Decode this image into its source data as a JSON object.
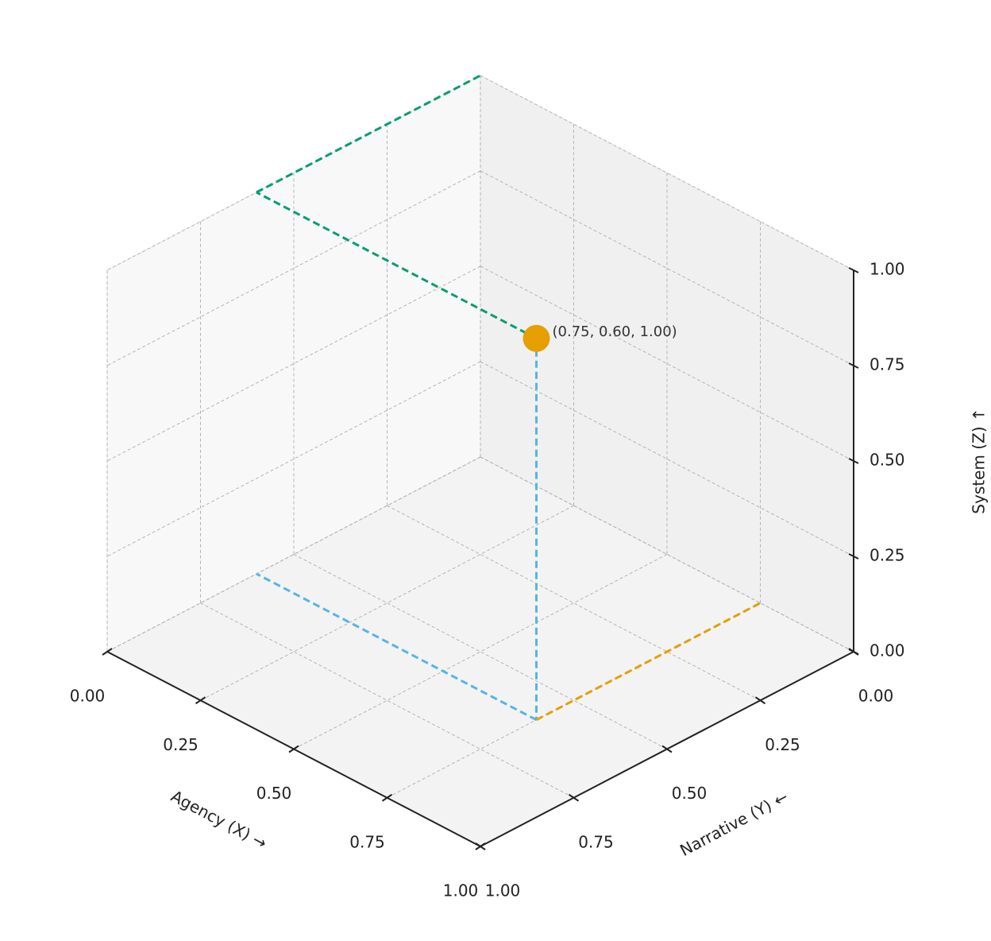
{
  "chart_data": {
    "type": "scatter3d",
    "xlabel": "Agency (X) →",
    "ylabel": "Narrative (Y) ←",
    "zlabel": "System (Z) ↑",
    "xlim": [
      0,
      1
    ],
    "ylim": [
      0,
      1
    ],
    "zlim": [
      0,
      1
    ],
    "xticks": [
      {
        "value": 0,
        "label": "0.00"
      },
      {
        "value": 0.25,
        "label": "0.25"
      },
      {
        "value": 0.5,
        "label": "0.50"
      },
      {
        "value": 0.75,
        "label": "0.75"
      },
      {
        "value": 1,
        "label": "1.00"
      }
    ],
    "yticks": [
      {
        "value": 0,
        "label": "0.00"
      },
      {
        "value": 0.25,
        "label": "0.25"
      },
      {
        "value": 0.5,
        "label": "0.50"
      },
      {
        "value": 0.75,
        "label": "0.75"
      },
      {
        "value": 1,
        "label": "1.00"
      }
    ],
    "zticks": [
      {
        "value": 0,
        "label": "0.00"
      },
      {
        "value": 0.25,
        "label": "0.25"
      },
      {
        "value": 0.5,
        "label": "0.50"
      },
      {
        "value": 0.75,
        "label": "0.75"
      },
      {
        "value": 1,
        "label": "1.00"
      }
    ],
    "grid": true,
    "points": {
      "x": [
        0.75
      ],
      "y": [
        0.6
      ],
      "z": [
        1.0
      ],
      "color": "#e69f00"
    },
    "annotation": "(0.75, 0.60, 1.00)",
    "lines": [
      {
        "x": [
          0.75,
          0.75
        ],
        "y": [
          0.6,
          0.6
        ],
        "z": [
          1.0,
          0
        ],
        "color": "#56b4e9"
      },
      {
        "x": [
          0.75,
          0
        ],
        "y": [
          0.6,
          0.6
        ],
        "z": [
          0,
          0
        ],
        "color": "#56b4e9"
      },
      {
        "x": [
          0.75,
          0.75
        ],
        "y": [
          0.6,
          0
        ],
        "z": [
          0,
          0
        ],
        "color": "#e69f00"
      },
      {
        "x": [
          0.75,
          0
        ],
        "y": [
          0.6,
          0.6
        ],
        "z": [
          1.0,
          1.0
        ],
        "color": "#009e73"
      },
      {
        "x": [
          0,
          0
        ],
        "y": [
          0.6,
          0
        ],
        "z": [
          1.0,
          1.0
        ],
        "color": "#009e73"
      }
    ]
  }
}
